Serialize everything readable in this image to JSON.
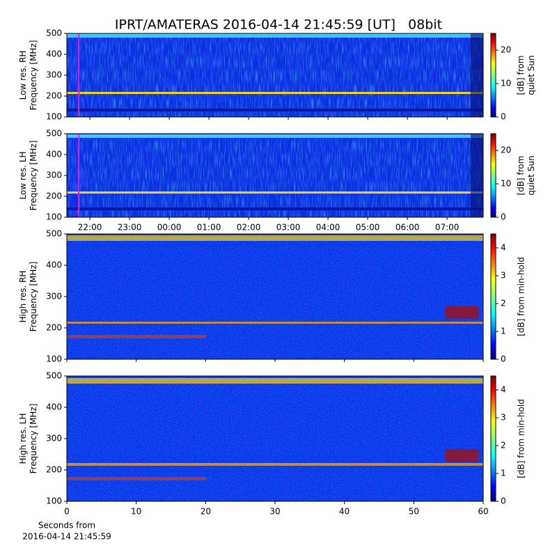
{
  "title": "IPRT/AMATERAS 2016-04-14 21:45:59 [UT]   08bit",
  "x_label": [
    "Seconds from",
    "2016-04-14 21:45:59"
  ],
  "chart_data": [
    {
      "type": "heatmap",
      "ylabel": [
        "Low res. RH",
        "Frequency [MHz]"
      ],
      "ylim": [
        100,
        500
      ],
      "yticks": [
        100,
        200,
        300,
        400,
        500
      ],
      "xlim": [
        21.42,
        31.91
      ],
      "xticks": [
        22,
        23,
        24,
        25,
        26,
        27,
        28,
        29,
        30,
        31
      ],
      "xticklabels": false,
      "marker_x": 21.72,
      "marker_color": "#e020e0",
      "colorbar": {
        "label": [
          "[dB] from",
          "quiet Sun"
        ],
        "lim": [
          0,
          25
        ],
        "ticks": [
          0,
          10,
          20
        ]
      }
    },
    {
      "type": "heatmap",
      "ylabel": [
        "Low res. LH",
        "Frequency [MHz]"
      ],
      "ylim": [
        100,
        500
      ],
      "yticks": [
        100,
        200,
        300,
        400,
        500
      ],
      "xlim": [
        21.42,
        31.91
      ],
      "xticks": [
        {
          "value": 22,
          "label": "22:00"
        },
        {
          "value": 23,
          "label": "23:00"
        },
        {
          "value": 24,
          "label": "00:00"
        },
        {
          "value": 25,
          "label": "01:00"
        },
        {
          "value": 26,
          "label": "02:00"
        },
        {
          "value": 27,
          "label": "03:00"
        },
        {
          "value": 28,
          "label": "04:00"
        },
        {
          "value": 29,
          "label": "05:00"
        },
        {
          "value": 30,
          "label": "06:00"
        },
        {
          "value": 31,
          "label": "07:00"
        }
      ],
      "xticklabels": true,
      "marker_x": 21.72,
      "marker_color": "#e020e0",
      "colorbar": {
        "label": [
          "[dB] from",
          "quiet Sun"
        ],
        "lim": [
          0,
          25
        ],
        "ticks": [
          0,
          10,
          20
        ]
      }
    },
    {
      "type": "heatmap",
      "ylabel": [
        "High res. RH",
        "Frequency [MHz]"
      ],
      "ylim": [
        100,
        500
      ],
      "yticks": [
        100,
        200,
        300,
        400,
        500
      ],
      "xlim": [
        0,
        60
      ],
      "xticks": [
        0,
        10,
        20,
        30,
        40,
        50,
        60
      ],
      "xticklabels": false,
      "colorbar": {
        "label": [
          "[dB] from min-hold"
        ],
        "lim": [
          0,
          4.5
        ],
        "ticks": [
          0,
          1,
          2,
          3,
          4
        ]
      }
    },
    {
      "type": "heatmap",
      "ylabel": [
        "High res. LH",
        "Frequency [MHz]"
      ],
      "ylim": [
        100,
        500
      ],
      "yticks": [
        100,
        200,
        300,
        400,
        500
      ],
      "xlim": [
        0,
        60
      ],
      "xticks": [
        0,
        10,
        20,
        30,
        40,
        50,
        60
      ],
      "xticklabels": true,
      "colorbar": {
        "label": [
          "[dB] from min-hold"
        ],
        "lim": [
          0,
          4.5
        ],
        "ticks": [
          0,
          1,
          2,
          3,
          4
        ]
      }
    }
  ]
}
